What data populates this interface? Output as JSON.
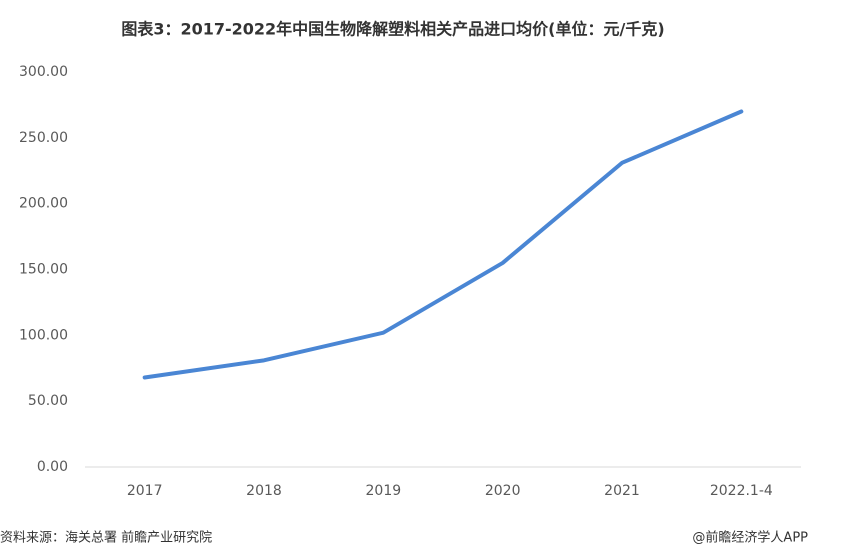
{
  "chart_data": {
    "type": "line",
    "title": "图表3：2017-2022年中国生物降解塑料相关产品进口均价(单位：元/千克)",
    "categories": [
      "2017",
      "2018",
      "2019",
      "2020",
      "2021",
      "2022.1-4"
    ],
    "series": [
      {
        "color": "#4a86d4",
        "values": [
          68,
          81,
          102,
          155,
          231,
          270
        ]
      }
    ],
    "ylim": [
      0,
      300
    ],
    "yticks": [
      {
        "value": 0,
        "label": "0.00"
      },
      {
        "value": 50,
        "label": "50.00"
      },
      {
        "value": 100,
        "label": "100.00"
      },
      {
        "value": 150,
        "label": "150.00"
      },
      {
        "value": 200,
        "label": "200.00"
      },
      {
        "value": 250,
        "label": "250.00"
      },
      {
        "value": 300,
        "label": "300.00"
      }
    ],
    "grid": false,
    "source": "资料来源：海关总署 前瞻产业研究院",
    "credit": "@前瞻经济学人APP"
  }
}
